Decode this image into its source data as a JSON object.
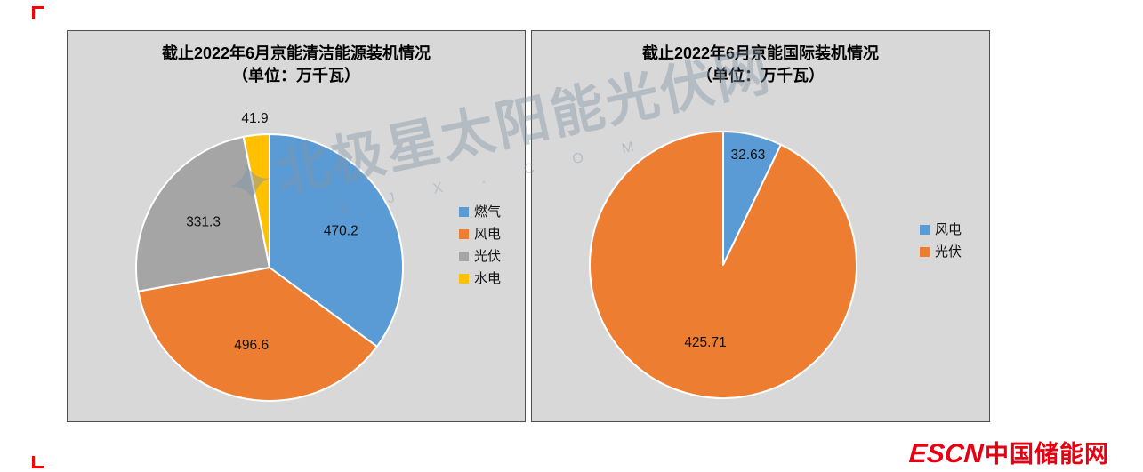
{
  "watermark": {
    "star": "✦",
    "text": "北极星太阳能光伏网",
    "sub": "B J X . C O M"
  },
  "footer_logo": {
    "escn": "ESCN",
    "site_name": "中国储能网",
    "color": "#E60012"
  },
  "chart_data": [
    {
      "type": "pie",
      "title": "截止2022年6月京能清洁能源装机情况",
      "subtitle": "（单位：万千瓦）",
      "unit": "万千瓦",
      "labels": [
        "燃气",
        "风电",
        "光伏",
        "水电"
      ],
      "values": [
        470.2,
        496.6,
        331.3,
        41.9
      ],
      "colors": [
        "#5B9BD5",
        "#ED7D31",
        "#A5A5A5",
        "#FFC000"
      ],
      "legend_position": "right",
      "start_angle_deg": 0,
      "direction": "clockwise"
    },
    {
      "type": "pie",
      "title": "截止2022年6月京能国际装机情况",
      "subtitle": "（单位：万千瓦）",
      "unit": "万千瓦",
      "labels": [
        "风电",
        "光伏"
      ],
      "values": [
        32.63,
        425.71
      ],
      "colors": [
        "#5B9BD5",
        "#ED7D31"
      ],
      "legend_position": "right",
      "start_angle_deg": 0,
      "direction": "clockwise"
    }
  ]
}
